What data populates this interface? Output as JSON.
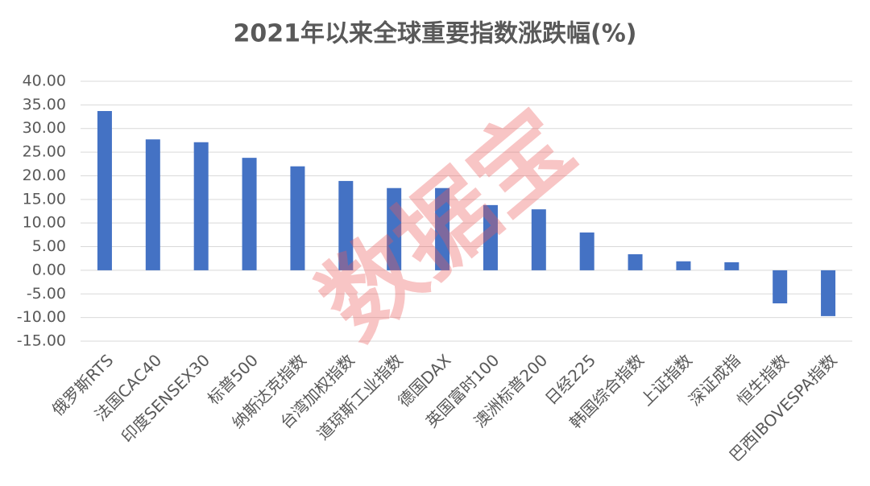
{
  "chart_data": {
    "type": "bar",
    "title": "2021年以来全球重要指数涨跌幅(%)",
    "categories": [
      "俄罗斯RTS",
      "法国CAC40",
      "印度SENSEX30",
      "标普500",
      "纳斯达克指数",
      "台湾加权指数",
      "道琼斯工业指数",
      "德国DAX",
      "英国富时100",
      "澳洲标普200",
      "日经225",
      "韩国综合指数",
      "上证指数",
      "深证成指",
      "恒生指数",
      "巴西IBOVESPA指数"
    ],
    "values": [
      33.7,
      27.7,
      27.1,
      23.8,
      22.0,
      18.9,
      17.4,
      17.4,
      13.8,
      12.9,
      8.0,
      3.4,
      1.9,
      1.7,
      -7.0,
      -9.7
    ],
    "color": "#4472c4",
    "ylim": [
      -15,
      40
    ],
    "yticks": [
      {
        "value": -15,
        "label": "-15.00"
      },
      {
        "value": -10,
        "label": "-10.00"
      },
      {
        "value": -5,
        "label": "-5.00"
      },
      {
        "value": 0,
        "label": "0.00"
      },
      {
        "value": 5,
        "label": "5.00"
      },
      {
        "value": 10,
        "label": "10.00"
      },
      {
        "value": 15,
        "label": "15.00"
      },
      {
        "value": 20,
        "label": "20.00"
      },
      {
        "value": 25,
        "label": "25.00"
      },
      {
        "value": 30,
        "label": "30.00"
      },
      {
        "value": 35,
        "label": "35.00"
      },
      {
        "value": 40,
        "label": "40.00"
      }
    ],
    "grid": true
  },
  "watermark": "数据宝"
}
